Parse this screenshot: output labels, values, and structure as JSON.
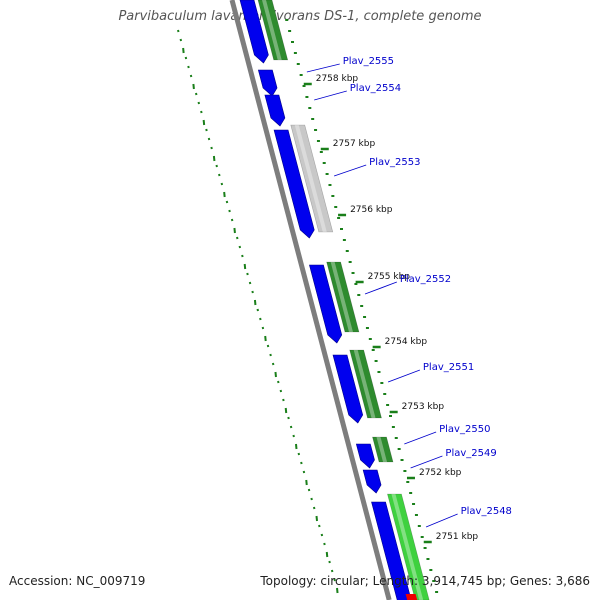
{
  "title": "Parvibaculum lavamentivorans DS-1, complete genome",
  "footer": {
    "accession": "Accession: NC_009719",
    "summary": "Topology: circular; Length: 3,914,745 bp; Genes: 3,686"
  },
  "colors": {
    "backbone": "#7d7d7d",
    "cds": "#0000ee",
    "gene_dark": "#2e8b2e",
    "gene_light": "#3fd13f",
    "gene_gray": "#c8c8c8",
    "gc_skew": "#1a7f1a",
    "label": "#0000cc",
    "marker": "#ee0000"
  },
  "ticks": [
    "2758 kbp",
    "2757 kbp",
    "2756 kbp",
    "2755 kbp",
    "2754 kbp",
    "2753 kbp",
    "2752 kbp",
    "2751 kbp"
  ],
  "genes": [
    {
      "label": "Plav_2555",
      "color": "gene_dark"
    },
    {
      "label": "Plav_2554",
      "color": "none"
    },
    {
      "label": "Plav_2553",
      "color": "gene_gray"
    },
    {
      "label": "Plav_2552",
      "color": "gene_dark"
    },
    {
      "label": "Plav_2551",
      "color": "gene_dark"
    },
    {
      "label": "Plav_2550",
      "color": "gene_dark"
    },
    {
      "label": "Plav_2549",
      "color": "none"
    },
    {
      "label": "Plav_2548",
      "color": "gene_light"
    }
  ]
}
